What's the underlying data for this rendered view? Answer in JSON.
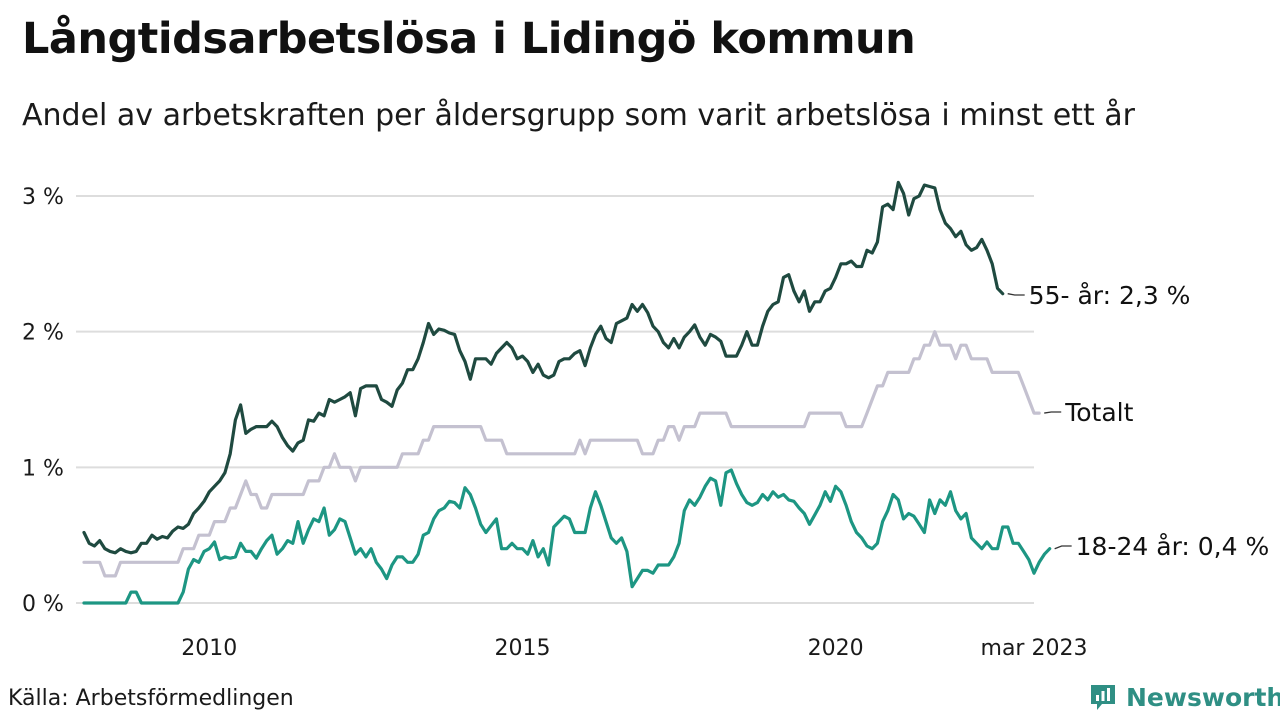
{
  "header": {
    "title": "Långtidsarbetslösa i Lidingö kommun",
    "subtitle": "Andel av arbetskraften per åldersgrupp som varit arbetslösa i minst ett år"
  },
  "footer": {
    "source": "Källa: Arbetsförmedlingen",
    "brand": "Newsworthy",
    "brand_icon": "bar-chart-speech-bubble-icon"
  },
  "colors": {
    "older": "#1f4a40",
    "total": "#c4c1d0",
    "young": "#1d9683",
    "grid": "#dddddd",
    "brand": "#2f8f84"
  },
  "chart_data": {
    "type": "line",
    "x_start": "2008-01",
    "x_end": "2023-03",
    "x_interval": "month",
    "xticks": [
      {
        "date": "2010-01",
        "label": "2010"
      },
      {
        "date": "2015-01",
        "label": "2015"
      },
      {
        "date": "2020-01",
        "label": "2020"
      },
      {
        "date": "2023-03",
        "label": "mar 2023"
      }
    ],
    "ylim": [
      0,
      3.1
    ],
    "yticks": [
      {
        "value": 0,
        "label": "0 %"
      },
      {
        "value": 1,
        "label": "1 %"
      },
      {
        "value": 2,
        "label": "2 %"
      },
      {
        "value": 3,
        "label": "3 %"
      }
    ],
    "grid": true,
    "series": [
      {
        "name": "55- år",
        "end_label": "55- år: 2,3 %",
        "color": "#1f4a40",
        "values": [
          0.52,
          0.44,
          0.42,
          0.46,
          0.4,
          0.38,
          0.37,
          0.4,
          0.38,
          0.37,
          0.38,
          0.44,
          0.44,
          0.5,
          0.47,
          0.49,
          0.48,
          0.53,
          0.56,
          0.55,
          0.58,
          0.66,
          0.7,
          0.75,
          0.82,
          0.86,
          0.9,
          0.96,
          1.1,
          1.35,
          1.46,
          1.25,
          1.28,
          1.3,
          1.3,
          1.3,
          1.34,
          1.3,
          1.22,
          1.16,
          1.12,
          1.18,
          1.2,
          1.35,
          1.34,
          1.4,
          1.38,
          1.5,
          1.48,
          1.5,
          1.52,
          1.55,
          1.38,
          1.58,
          1.6,
          1.6,
          1.6,
          1.5,
          1.48,
          1.45,
          1.57,
          1.62,
          1.72,
          1.72,
          1.8,
          1.92,
          2.06,
          1.98,
          2.02,
          2.01,
          1.99,
          1.98,
          1.86,
          1.78,
          1.65,
          1.8,
          1.8,
          1.8,
          1.76,
          1.84,
          1.88,
          1.92,
          1.88,
          1.8,
          1.82,
          1.78,
          1.7,
          1.76,
          1.68,
          1.66,
          1.68,
          1.78,
          1.8,
          1.8,
          1.84,
          1.86,
          1.75,
          1.88,
          1.98,
          2.04,
          1.95,
          1.92,
          2.06,
          2.08,
          2.1,
          2.2,
          2.15,
          2.2,
          2.14,
          2.04,
          2.0,
          1.92,
          1.88,
          1.95,
          1.88,
          1.96,
          2.0,
          2.05,
          1.96,
          1.9,
          1.98,
          1.96,
          1.93,
          1.82,
          1.82,
          1.82,
          1.9,
          2.0,
          1.9,
          1.9,
          2.04,
          2.15,
          2.2,
          2.22,
          2.4,
          2.42,
          2.3,
          2.22,
          2.3,
          2.15,
          2.22,
          2.22,
          2.3,
          2.32,
          2.4,
          2.5,
          2.5,
          2.52,
          2.48,
          2.48,
          2.6,
          2.58,
          2.66,
          2.92,
          2.94,
          2.9,
          3.1,
          3.02,
          2.86,
          2.98,
          3.0,
          3.08,
          3.07,
          3.06,
          2.9,
          2.8,
          2.76,
          2.7,
          2.74,
          2.64,
          2.6,
          2.62,
          2.68,
          2.6,
          2.5,
          2.32,
          2.28
        ]
      },
      {
        "name": "Totalt",
        "end_label": "Totalt",
        "color": "#c4c1d0",
        "values": [
          0.3,
          0.3,
          0.3,
          0.3,
          0.2,
          0.2,
          0.2,
          0.3,
          0.3,
          0.3,
          0.3,
          0.3,
          0.3,
          0.3,
          0.3,
          0.3,
          0.3,
          0.3,
          0.3,
          0.4,
          0.4,
          0.4,
          0.5,
          0.5,
          0.5,
          0.6,
          0.6,
          0.6,
          0.7,
          0.7,
          0.8,
          0.9,
          0.8,
          0.8,
          0.7,
          0.7,
          0.8,
          0.8,
          0.8,
          0.8,
          0.8,
          0.8,
          0.8,
          0.9,
          0.9,
          0.9,
          1.0,
          1.0,
          1.1,
          1.0,
          1.0,
          1.0,
          0.9,
          1.0,
          1.0,
          1.0,
          1.0,
          1.0,
          1.0,
          1.0,
          1.0,
          1.1,
          1.1,
          1.1,
          1.1,
          1.2,
          1.2,
          1.3,
          1.3,
          1.3,
          1.3,
          1.3,
          1.3,
          1.3,
          1.3,
          1.3,
          1.3,
          1.2,
          1.2,
          1.2,
          1.2,
          1.1,
          1.1,
          1.1,
          1.1,
          1.1,
          1.1,
          1.1,
          1.1,
          1.1,
          1.1,
          1.1,
          1.1,
          1.1,
          1.1,
          1.2,
          1.1,
          1.2,
          1.2,
          1.2,
          1.2,
          1.2,
          1.2,
          1.2,
          1.2,
          1.2,
          1.2,
          1.1,
          1.1,
          1.1,
          1.2,
          1.2,
          1.3,
          1.3,
          1.2,
          1.3,
          1.3,
          1.3,
          1.4,
          1.4,
          1.4,
          1.4,
          1.4,
          1.4,
          1.3,
          1.3,
          1.3,
          1.3,
          1.3,
          1.3,
          1.3,
          1.3,
          1.3,
          1.3,
          1.3,
          1.3,
          1.3,
          1.3,
          1.3,
          1.4,
          1.4,
          1.4,
          1.4,
          1.4,
          1.4,
          1.4,
          1.3,
          1.3,
          1.3,
          1.3,
          1.4,
          1.5,
          1.6,
          1.6,
          1.7,
          1.7,
          1.7,
          1.7,
          1.7,
          1.8,
          1.8,
          1.9,
          1.9,
          2.0,
          1.9,
          1.9,
          1.9,
          1.8,
          1.9,
          1.9,
          1.8,
          1.8,
          1.8,
          1.8,
          1.7,
          1.7,
          1.7,
          1.7,
          1.7,
          1.7,
          1.6,
          1.5,
          1.4,
          1.4
        ]
      },
      {
        "name": "18-24 år",
        "end_label": "18-24 år: 0,4 %",
        "color": "#1d9683",
        "values": [
          0,
          0,
          0,
          0,
          0,
          0,
          0,
          0,
          0,
          0.08,
          0.08,
          0,
          0,
          0,
          0,
          0,
          0,
          0,
          0,
          0.08,
          0.25,
          0.32,
          0.3,
          0.38,
          0.4,
          0.45,
          0.32,
          0.34,
          0.33,
          0.34,
          0.44,
          0.38,
          0.38,
          0.33,
          0.4,
          0.46,
          0.5,
          0.36,
          0.4,
          0.46,
          0.44,
          0.6,
          0.44,
          0.54,
          0.62,
          0.6,
          0.7,
          0.5,
          0.54,
          0.62,
          0.6,
          0.48,
          0.36,
          0.4,
          0.34,
          0.4,
          0.3,
          0.25,
          0.18,
          0.28,
          0.34,
          0.34,
          0.3,
          0.3,
          0.36,
          0.5,
          0.52,
          0.62,
          0.68,
          0.7,
          0.75,
          0.74,
          0.7,
          0.85,
          0.8,
          0.7,
          0.58,
          0.52,
          0.57,
          0.62,
          0.4,
          0.4,
          0.44,
          0.4,
          0.4,
          0.36,
          0.46,
          0.34,
          0.4,
          0.28,
          0.56,
          0.6,
          0.64,
          0.62,
          0.52,
          0.52,
          0.52,
          0.7,
          0.82,
          0.72,
          0.6,
          0.48,
          0.44,
          0.48,
          0.38,
          0.12,
          0.18,
          0.24,
          0.24,
          0.22,
          0.28,
          0.28,
          0.28,
          0.34,
          0.44,
          0.68,
          0.76,
          0.72,
          0.78,
          0.86,
          0.92,
          0.9,
          0.72,
          0.96,
          0.98,
          0.88,
          0.8,
          0.74,
          0.72,
          0.74,
          0.8,
          0.76,
          0.82,
          0.78,
          0.8,
          0.76,
          0.75,
          0.7,
          0.66,
          0.58,
          0.65,
          0.72,
          0.82,
          0.75,
          0.86,
          0.82,
          0.72,
          0.6,
          0.52,
          0.48,
          0.42,
          0.4,
          0.44,
          0.6,
          0.68,
          0.8,
          0.76,
          0.62,
          0.66,
          0.64,
          0.58,
          0.52,
          0.76,
          0.66,
          0.76,
          0.72,
          0.82,
          0.68,
          0.62,
          0.66,
          0.48,
          0.44,
          0.4,
          0.45,
          0.4,
          0.4,
          0.56,
          0.56,
          0.44,
          0.44,
          0.38,
          0.32,
          0.22,
          0.3,
          0.36,
          0.4
        ]
      }
    ]
  }
}
